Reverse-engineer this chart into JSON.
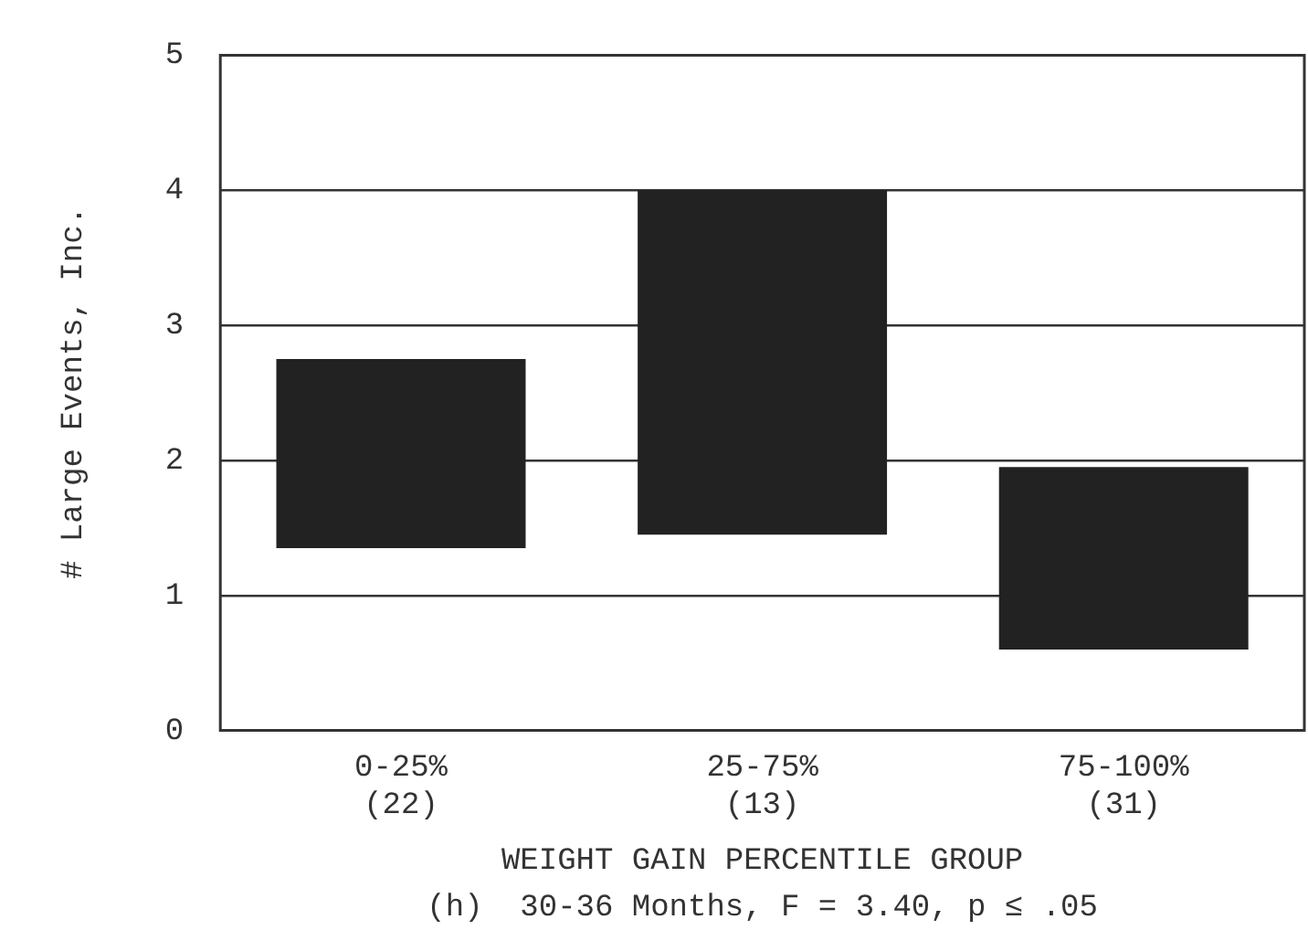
{
  "chart_data": {
    "type": "bar",
    "categories": [
      "0-25%\n(22)",
      "25-75%\n(13)",
      "75-100%\n(31)"
    ],
    "values": [
      1.4,
      2.55,
      1.35
    ],
    "base": [
      1.35,
      1.45,
      0.6
    ],
    "color": "#222222",
    "ylim": [
      0,
      5
    ],
    "yticks": [
      0,
      1,
      2,
      3,
      4,
      5
    ],
    "grid": "y",
    "legend": false,
    "ylabel": "# Large Events, Inc.",
    "xlabel": "WEIGHT GAIN PERCENTILE GROUP",
    "annotations": [
      "(h)  30-36 Months, F = 3.40, p ≤ .05"
    ]
  }
}
